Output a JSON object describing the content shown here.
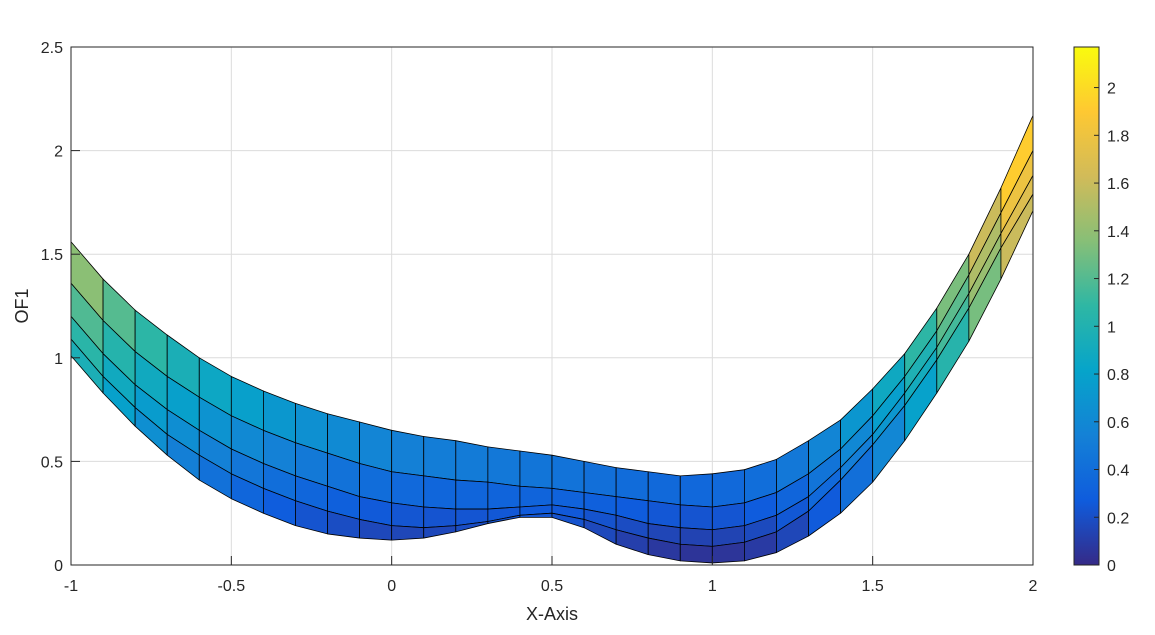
{
  "chart_data": {
    "type": "surface",
    "xlabel": "X-Axis",
    "ylabel": "OF1",
    "xlim": [
      -1,
      2
    ],
    "ylim": [
      0,
      2.5
    ],
    "xticks": [
      "-1",
      "-0.5",
      "0",
      "0.5",
      "1",
      "1.5",
      "2"
    ],
    "yticks": [
      "0",
      "0.5",
      "1",
      "1.5",
      "2",
      "2.5"
    ],
    "grid": true,
    "colormap": "parula",
    "colorbar": {
      "range": [
        0,
        2.17
      ],
      "ticks": [
        "0",
        "0.2",
        "0.4",
        "0.6",
        "0.8",
        "1",
        "1.2",
        "1.4",
        "1.6",
        "1.8",
        "2"
      ],
      "colors": [
        "#352a87",
        "#0f5cdd",
        "#1481d6",
        "#06a4ca",
        "#2eb7a4",
        "#87bf77",
        "#d1bb59",
        "#fec832",
        "#f9fb0e"
      ]
    },
    "x": [
      -1,
      -0.9,
      -0.8,
      -0.7,
      -0.6,
      -0.5,
      -0.4,
      -0.3,
      -0.2,
      -0.1,
      0,
      0.1,
      0.2,
      0.3,
      0.4,
      0.5,
      0.6,
      0.7,
      0.8,
      0.9,
      1,
      1.1,
      1.2,
      1.3,
      1.4,
      1.5,
      1.6,
      1.7,
      1.8,
      1.9,
      2
    ],
    "series": [
      {
        "values": [
          1.56,
          1.38,
          1.23,
          1.11,
          1.0,
          0.91,
          0.84,
          0.78,
          0.73,
          0.69,
          0.65,
          0.62,
          0.6,
          0.57,
          0.55,
          0.53,
          0.5,
          0.47,
          0.45,
          0.43,
          0.44,
          0.46,
          0.51,
          0.6,
          0.7,
          0.85,
          1.02,
          1.24,
          1.5,
          1.82,
          2.17
        ]
      },
      {
        "values": [
          1.36,
          1.18,
          1.03,
          0.91,
          0.81,
          0.72,
          0.65,
          0.59,
          0.54,
          0.49,
          0.45,
          0.43,
          0.41,
          0.4,
          0.38,
          0.37,
          0.35,
          0.33,
          0.31,
          0.29,
          0.28,
          0.3,
          0.35,
          0.44,
          0.56,
          0.72,
          0.91,
          1.13,
          1.4,
          1.7,
          2.0
        ]
      },
      {
        "values": [
          1.2,
          1.02,
          0.87,
          0.75,
          0.65,
          0.56,
          0.49,
          0.43,
          0.38,
          0.33,
          0.3,
          0.28,
          0.27,
          0.27,
          0.28,
          0.29,
          0.27,
          0.24,
          0.2,
          0.18,
          0.17,
          0.19,
          0.24,
          0.33,
          0.47,
          0.63,
          0.83,
          1.05,
          1.31,
          1.6,
          1.88
        ]
      },
      {
        "values": [
          1.09,
          0.91,
          0.76,
          0.63,
          0.53,
          0.44,
          0.37,
          0.31,
          0.26,
          0.22,
          0.19,
          0.18,
          0.19,
          0.21,
          0.24,
          0.25,
          0.22,
          0.17,
          0.13,
          0.1,
          0.09,
          0.11,
          0.16,
          0.26,
          0.41,
          0.58,
          0.77,
          0.99,
          1.24,
          1.53,
          1.79
        ]
      },
      {
        "values": [
          1.01,
          0.83,
          0.67,
          0.53,
          0.41,
          0.32,
          0.25,
          0.19,
          0.15,
          0.13,
          0.12,
          0.13,
          0.16,
          0.2,
          0.23,
          0.23,
          0.18,
          0.1,
          0.05,
          0.02,
          0.01,
          0.02,
          0.06,
          0.14,
          0.25,
          0.4,
          0.6,
          0.83,
          1.08,
          1.38,
          1.71
        ]
      }
    ]
  }
}
